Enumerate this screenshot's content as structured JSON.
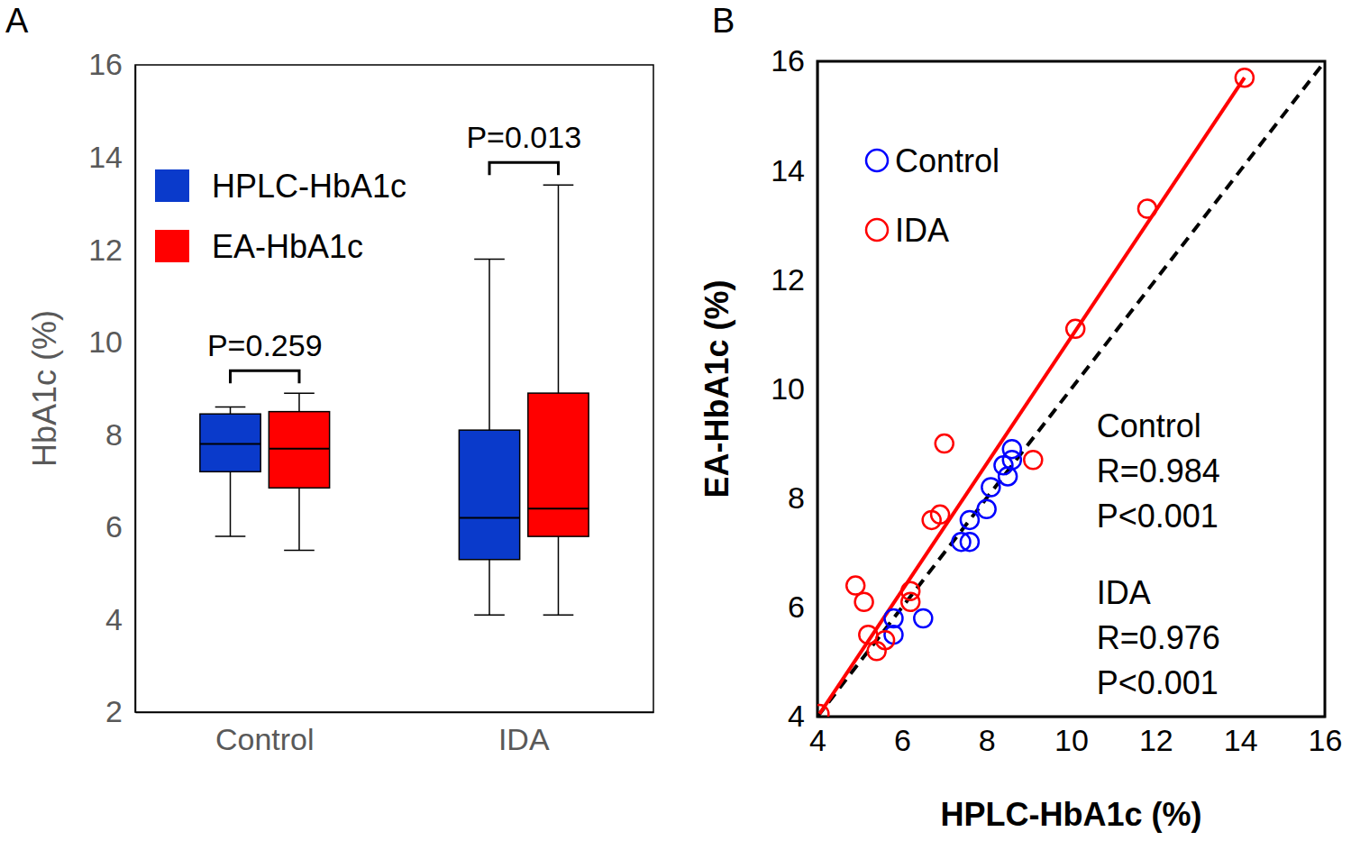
{
  "chart_data": [
    {
      "type": "box",
      "label": "A",
      "y_label": "HbA1c (%)",
      "categories": [
        "Control",
        "IDA"
      ],
      "ylim": [
        2,
        16
      ],
      "yticks": [
        2,
        4,
        6,
        8,
        10,
        12,
        14,
        16
      ],
      "grid": false,
      "legend": "upper left",
      "series": [
        {
          "name": "HPLC-HbA1c",
          "color": "#0a3acb",
          "min": [
            5.8,
            4.1
          ],
          "q1": [
            7.2,
            5.3
          ],
          "median": [
            7.8,
            6.2
          ],
          "q3": [
            8.45,
            8.1
          ],
          "max": [
            8.6,
            11.8
          ]
        },
        {
          "name": "EA-HbA1c",
          "color": "#ff0000",
          "min": [
            5.5,
            4.1
          ],
          "q1": [
            6.85,
            5.8
          ],
          "median": [
            7.7,
            6.4
          ],
          "q3": [
            8.5,
            8.9
          ],
          "max": [
            8.9,
            13.4
          ]
        }
      ],
      "annotations": [
        {
          "category": "Control",
          "text": "P=0.259"
        },
        {
          "category": "IDA",
          "text": "P=0.013"
        }
      ]
    },
    {
      "type": "scatter",
      "label": "B",
      "x_label": "HPLC-HbA1c (%)",
      "y_label": "EA-HbA1c (%)",
      "xlim": [
        4,
        16
      ],
      "xticks": [
        4,
        6,
        8,
        10,
        12,
        14,
        16
      ],
      "ylim": [
        4,
        16
      ],
      "yticks": [
        4,
        6,
        8,
        10,
        12,
        14,
        16
      ],
      "grid": false,
      "legend": "upper left",
      "series": [
        {
          "name": "Control",
          "color": "#0000ff",
          "marker": "circle",
          "x": [
            5.8,
            5.8,
            6.5,
            7.4,
            7.6,
            7.6,
            8.0,
            8.1,
            8.4,
            8.5,
            8.6,
            8.6
          ],
          "values": [
            5.8,
            5.5,
            5.8,
            7.2,
            7.2,
            7.6,
            7.8,
            8.2,
            8.6,
            8.4,
            8.7,
            8.9
          ]
        },
        {
          "name": "IDA",
          "color": "#ff0000",
          "marker": "circle",
          "x": [
            4.05,
            4.9,
            5.1,
            5.2,
            5.4,
            5.6,
            6.2,
            6.2,
            6.7,
            6.9,
            7.0,
            9.1,
            10.1,
            11.8,
            14.1
          ],
          "values": [
            4.05,
            6.4,
            6.1,
            5.5,
            5.2,
            5.4,
            6.3,
            6.1,
            7.6,
            7.7,
            9.0,
            8.7,
            11.1,
            13.3,
            15.7
          ]
        },
        {
          "type": "line",
          "color": "#000000",
          "line_style": "dashed",
          "x": [
            4,
            16
          ],
          "values": [
            4,
            16
          ]
        },
        {
          "type": "line",
          "color": "#ff0000",
          "line_style": "solid",
          "x": [
            4.05,
            14.1
          ],
          "values": [
            4.05,
            15.7
          ]
        }
      ],
      "stats": [
        {
          "group": "Control",
          "lines": [
            "R=0.984",
            "P<0.001"
          ]
        },
        {
          "group": "IDA",
          "lines": [
            "R=0.976",
            "P<0.001"
          ]
        }
      ]
    }
  ]
}
